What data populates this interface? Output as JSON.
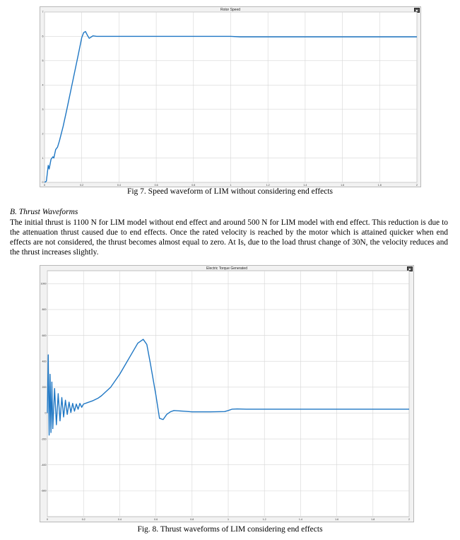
{
  "figure7": {
    "scope_title": "Rotor Speed",
    "caption": "Fig 7. Speed waveform of LIM without considering end effects",
    "chart_data": {
      "type": "line",
      "title": "Rotor Speed",
      "xlabel": "",
      "ylabel": "",
      "xlim": [
        0,
        2
      ],
      "ylim": [
        0,
        7
      ],
      "grid": true,
      "x_ticks": [
        "0",
        "0.2",
        "0.4",
        "0.6",
        "0.8",
        "1",
        "1.2",
        "1.4",
        "1.6",
        "1.8",
        "2"
      ],
      "y_ticks": [
        "0",
        "1",
        "2",
        "3",
        "4",
        "5",
        "6",
        "7"
      ],
      "series": [
        {
          "color": "#1f77c4",
          "x": [
            0,
            0.01,
            0.02,
            0.025,
            0.035,
            0.045,
            0.05,
            0.06,
            0.07,
            0.08,
            0.1,
            0.12,
            0.15,
            0.18,
            0.2,
            0.21,
            0.22,
            0.23,
            0.24,
            0.26,
            0.28,
            0.3,
            0.4,
            1.0,
            1.05,
            1.5,
            2.0
          ],
          "y": [
            0,
            0.05,
            0.7,
            0.55,
            0.95,
            1.05,
            1.0,
            1.35,
            1.45,
            1.7,
            2.3,
            3.0,
            4.1,
            5.2,
            5.95,
            6.15,
            6.2,
            6.05,
            5.92,
            6.02,
            6.0,
            6.0,
            6.0,
            6.0,
            5.98,
            5.98,
            5.98
          ]
        }
      ]
    }
  },
  "section": {
    "heading": "B.   Thrust Waveforms",
    "paragraph": "The initial thrust is 1100 N for LIM model without end effect and around 500 N for LIM model with end effect. This reduction is due to the attenuation thrust caused due to end effects. Once the rated velocity is reached by the motor which is attained quicker when end effects are not considered, the thrust becomes almost equal to zero. At Is, due to the load thrust change of 30N, the velocity reduces and the thrust increases slightly."
  },
  "figure8": {
    "scope_title": "Electric Torque Generated",
    "caption": "Fig. 8.  Thrust waveforms of LIM considering end effects",
    "chart_data": {
      "type": "line",
      "title": "Electric Torque Generated",
      "xlabel": "",
      "ylabel": "",
      "xlim": [
        0,
        2
      ],
      "ylim": [
        -800,
        1100
      ],
      "grid": true,
      "x_ticks": [
        "0",
        "0.2",
        "0.4",
        "0.6",
        "0.8",
        "1",
        "1.2",
        "1.4",
        "1.6",
        "1.8",
        "2"
      ],
      "y_ticks": [
        "1000",
        "800",
        "600",
        "400",
        "200",
        "0",
        "-200",
        "-400",
        "-600"
      ],
      "series": [
        {
          "color": "#1f77c4",
          "x": [
            0,
            0.005,
            0.01,
            0.015,
            0.02,
            0.025,
            0.03,
            0.04,
            0.05,
            0.06,
            0.07,
            0.08,
            0.09,
            0.1,
            0.11,
            0.12,
            0.13,
            0.14,
            0.15,
            0.16,
            0.17,
            0.18,
            0.19,
            0.2,
            0.22,
            0.25,
            0.28,
            0.3,
            0.35,
            0.4,
            0.45,
            0.5,
            0.53,
            0.55,
            0.57,
            0.6,
            0.62,
            0.64,
            0.66,
            0.68,
            0.7,
            0.75,
            0.8,
            0.9,
            0.98,
            1.0,
            1.02,
            1.05,
            1.1,
            1.5,
            2.0
          ],
          "y": [
            0,
            450,
            -170,
            300,
            -150,
            240,
            -120,
            190,
            -90,
            150,
            -60,
            120,
            -30,
            100,
            -10,
            85,
            5,
            75,
            15,
            70,
            30,
            75,
            45,
            70,
            80,
            95,
            115,
            135,
            200,
            300,
            420,
            540,
            570,
            530,
            380,
            140,
            -40,
            -50,
            -10,
            10,
            20,
            15,
            10,
            10,
            12,
            20,
            30,
            32,
            30,
            30,
            30
          ]
        }
      ]
    }
  }
}
